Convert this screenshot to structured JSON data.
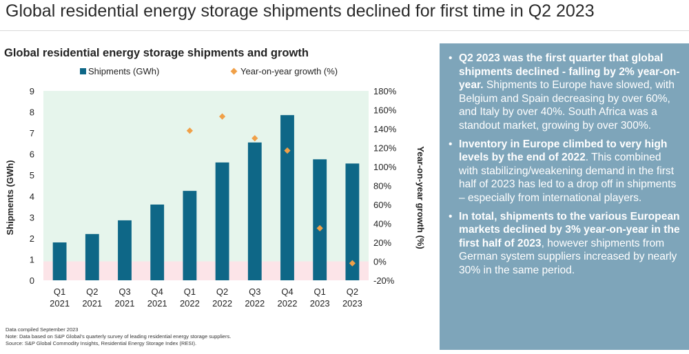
{
  "page_title": "Global residential energy storage shipments declined for first time in Q2 2023",
  "chart_data": {
    "type": "bar",
    "title": "Global residential energy storage shipments and growth",
    "categories": [
      "Q1 2021",
      "Q2 2021",
      "Q3 2021",
      "Q4 2021",
      "Q1 2022",
      "Q2 2022",
      "Q3 2022",
      "Q4 2022",
      "Q1 2023",
      "Q2 2023"
    ],
    "category_lines": [
      [
        "Q1",
        "2021"
      ],
      [
        "Q2",
        "2021"
      ],
      [
        "Q3",
        "2021"
      ],
      [
        "Q4",
        "2021"
      ],
      [
        "Q1",
        "2022"
      ],
      [
        "Q2",
        "2022"
      ],
      [
        "Q3",
        "2022"
      ],
      [
        "Q4",
        "2022"
      ],
      [
        "Q1",
        "2023"
      ],
      [
        "Q2",
        "2023"
      ]
    ],
    "series": [
      {
        "name": "Shipments (GWh)",
        "type": "bar",
        "axis": "left",
        "values": [
          1.8,
          2.2,
          2.85,
          3.6,
          4.25,
          5.6,
          6.55,
          7.85,
          5.75,
          5.55
        ]
      },
      {
        "name": "Year-on-year growth (%)",
        "type": "scatter",
        "axis": "right",
        "values": [
          null,
          null,
          null,
          null,
          138,
          153,
          130,
          117,
          35,
          -2
        ]
      }
    ],
    "ylabel": "Shipments (GWh)",
    "y2label": "Year-on-year growth (%)",
    "ylim": [
      0,
      9
    ],
    "y2lim": [
      -20,
      180
    ],
    "yticks": [
      "0",
      "1",
      "2",
      "3",
      "4",
      "5",
      "6",
      "7",
      "8",
      "9"
    ],
    "y2ticks": [
      "-20%",
      "0%",
      "20%",
      "40%",
      "60%",
      "80%",
      "100%",
      "120%",
      "140%",
      "160%",
      "180%"
    ],
    "legend_position": "top",
    "colors": {
      "bar": "#0e6787",
      "marker": "#f0a048",
      "bg_positive": "#e6f5ec",
      "bg_negative": "#fce4e8"
    }
  },
  "notes": [
    "Data compiled September 2023",
    "Note: Data based on S&P Global's quarterly survey of leading residential energy storage suppliers.",
    "Source: S&P Global Commodity Insights, Residential Energy Storage Index (RESI)."
  ],
  "panel": {
    "bullets": [
      {
        "bold": "Q2 2023 was the first quarter that global shipments declined - falling by 2% year-on-year.",
        "text": " Shipments to Europe have slowed, with Belgium and Spain decreasing by over 60%, and Italy by over 40%. South Africa was a standout market, growing by over 300%."
      },
      {
        "bold": "Inventory in Europe climbed to very high levels by the end of 2022",
        "text": ". This combined with stabilizing/weakening demand in the first half of 2023 has led to a drop off in shipments – especially from international players."
      },
      {
        "bold": "In total, shipments to the various European markets declined by 3% year-on-year in the first half of 2023",
        "text": ", however shipments from German system suppliers increased by nearly 30% in the same period."
      }
    ]
  }
}
